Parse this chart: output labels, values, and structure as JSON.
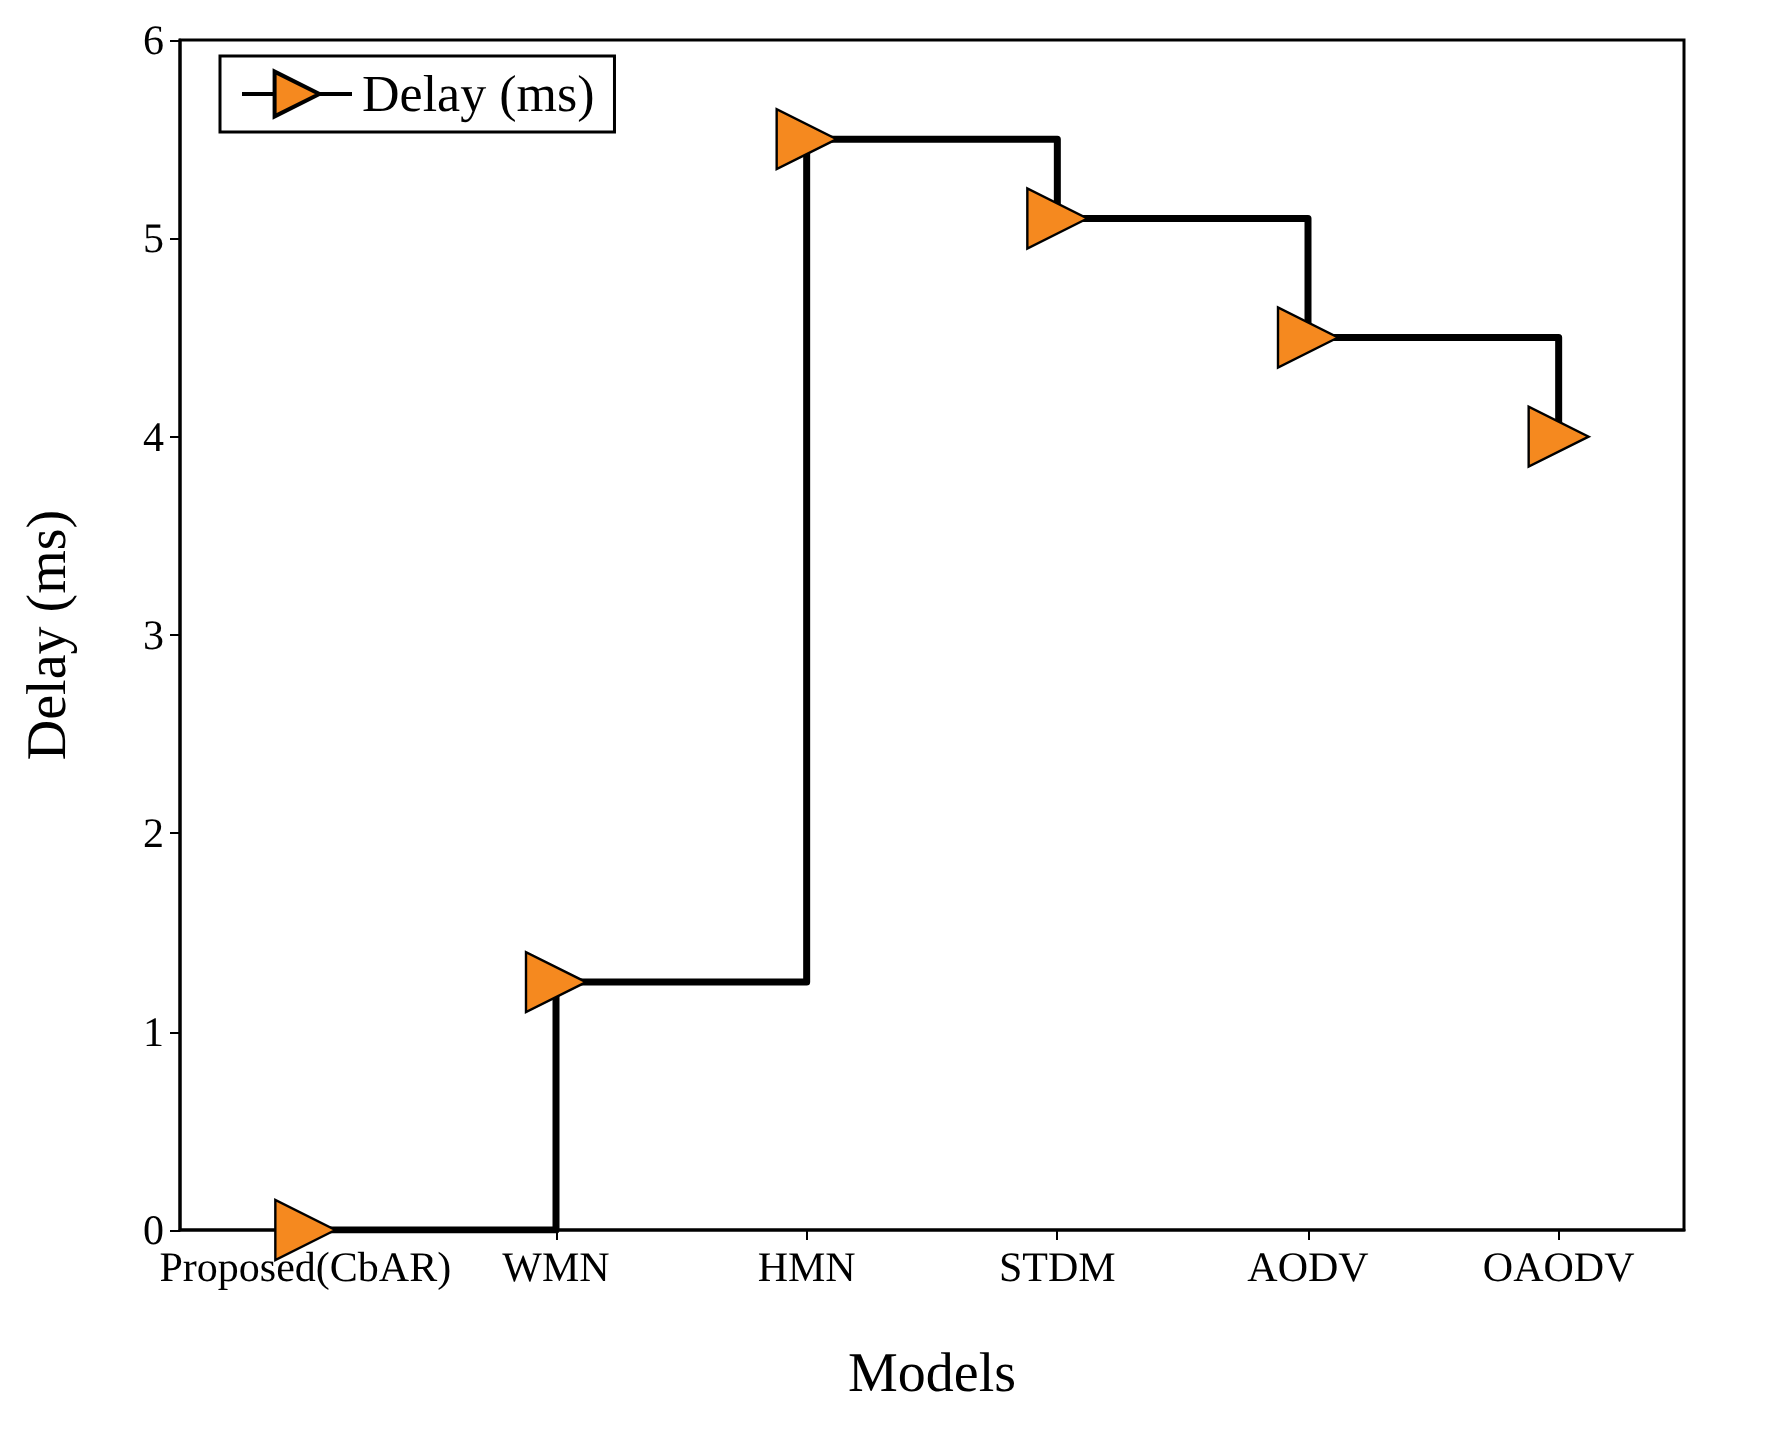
{
  "chart_data": {
    "type": "step",
    "xlabel": "Models",
    "ylabel": "Delay (ms)",
    "categories": [
      "Proposed(CbAR)",
      "WMN",
      "HMN",
      "STDM",
      "AODV",
      "OAODV"
    ],
    "series": [
      {
        "name": "Delay (ms)",
        "color": "#f5891f",
        "values": [
          0,
          1.25,
          5.5,
          5.1,
          4.5,
          4.0
        ]
      }
    ],
    "ylim": [
      0,
      6
    ],
    "yticks": [
      0,
      1,
      2,
      3,
      4,
      5,
      6
    ],
    "grid": false,
    "legend": "top left",
    "marker": "triangle",
    "line_style": "solid"
  }
}
